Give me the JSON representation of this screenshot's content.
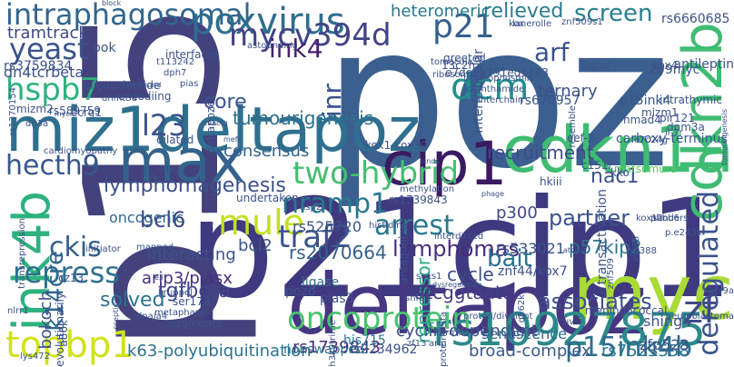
{
  "words": [
    {
      "text": "poz",
      "color": "#3b5f8f",
      "vertical": false
    },
    {
      "text": "p21cip1",
      "color": "#3f3a7f",
      "vertical": false
    },
    {
      "text": "p15",
      "color": "#43427d",
      "vertical": true
    },
    {
      "text": "deltapoz",
      "color": "#453781",
      "vertical": false
    },
    {
      "text": "miz1deltapoz",
      "color": "#2f6f8f",
      "vertical": false
    },
    {
      "text": "cdkn1a",
      "color": "#3fbc73",
      "vertical": false
    },
    {
      "text": "myc",
      "color": "#a8db34",
      "vertical": false
    },
    {
      "text": "cdkn2b",
      "color": "#3fbc73",
      "vertical": true
    },
    {
      "text": "cip1",
      "color": "#3a1a60",
      "vertical": false
    },
    {
      "text": "max",
      "color": "#33638d",
      "vertical": false
    },
    {
      "text": "ink4b",
      "color": "#2db27d",
      "vertical": true
    },
    {
      "text": "rs10927875",
      "color": "#2c8a8a",
      "vertical": false
    },
    {
      "text": "oncoprotein",
      "color": "#4ac16d",
      "vertical": false
    },
    {
      "text": "poxvirus",
      "color": "#2e6e8e",
      "vertical": false
    },
    {
      "text": "intraphagosomal",
      "color": "#32658e",
      "vertical": false
    },
    {
      "text": "mule",
      "color": "#c2df23",
      "vertical": false
    },
    {
      "text": "two-hybrid",
      "color": "#44bf70",
      "vertical": false
    },
    {
      "text": "deregulated",
      "color": "#3a538b",
      "vertical": true
    },
    {
      "text": "topbp1",
      "color": "#d2e21b",
      "vertical": false
    },
    {
      "text": "nramp1",
      "color": "#2a788e",
      "vertical": false
    },
    {
      "text": "traf2",
      "color": "#3b528b",
      "vertical": false
    },
    {
      "text": "arrest",
      "color": "#2a788e",
      "vertical": false
    },
    {
      "text": "dcm",
      "color": "#21908d",
      "vertical": false
    },
    {
      "text": "repress",
      "color": "#2d708e",
      "vertical": false
    },
    {
      "text": "p15ink4b",
      "color": "#2f6c8e",
      "vertical": false
    },
    {
      "text": "yeast",
      "color": "#3b528b",
      "vertical": false
    },
    {
      "text": "mycv394d",
      "color": "#414287",
      "vertical": false
    },
    {
      "text": "hspb7",
      "color": "#2db27d",
      "vertical": false
    },
    {
      "text": "l23",
      "color": "#3b528b",
      "vertical": false
    },
    {
      "text": "hecth9",
      "color": "#38588c",
      "vertical": false
    },
    {
      "text": "ckis",
      "color": "#34608d",
      "vertical": false
    },
    {
      "text": "bcl6",
      "color": "#3f4788",
      "vertical": false
    },
    {
      "text": "k14cre",
      "color": "#31668e",
      "vertical": true
    },
    {
      "text": "partner",
      "color": "#3b528b",
      "vertical": false
    },
    {
      "text": "ink4",
      "color": "#481f70",
      "vertical": false
    },
    {
      "text": "zf",
      "color": "#3e4a89",
      "vertical": false
    },
    {
      "text": "p21",
      "color": "#355f8d",
      "vertical": false
    },
    {
      "text": "screen",
      "color": "#277f8e",
      "vertical": false
    },
    {
      "text": "arf",
      "color": "#3a538b",
      "vertical": false
    },
    {
      "text": "associates",
      "color": "#3d4e8a",
      "vertical": false
    },
    {
      "text": "lymphomagenesis",
      "color": "#3b518b",
      "vertical": false
    },
    {
      "text": "tgfbeta",
      "color": "#404588",
      "vertical": false
    },
    {
      "text": "solved",
      "color": "#2c728e",
      "vertical": false
    },
    {
      "text": "k63-polyubiquitination",
      "color": "#2c728e",
      "vertical": false
    },
    {
      "text": "tramtrack",
      "color": "#3f4889",
      "vertical": false
    },
    {
      "text": "core",
      "color": "#3b528b",
      "vertical": false
    },
    {
      "text": "relieved",
      "color": "#287c8e",
      "vertical": false
    },
    {
      "text": "consensus",
      "color": "#33638d",
      "vertical": false
    },
    {
      "text": "rs2070664",
      "color": "#34618d",
      "vertical": false
    },
    {
      "text": "p57kip2",
      "color": "#2c738e",
      "vertical": false
    },
    {
      "text": "lymphomas",
      "color": "#472d7b",
      "vertical": false
    },
    {
      "text": "cycle",
      "color": "#3d4d8a",
      "vertical": false
    },
    {
      "text": "bait",
      "color": "#2d718e",
      "vertical": false
    },
    {
      "text": "rs1739843",
      "color": "#472c7a",
      "vertical": false
    },
    {
      "text": "tumourigenesis",
      "color": "#2d708e",
      "vertical": false
    },
    {
      "text": "recruitment",
      "color": "#3e4a89",
      "vertical": false
    },
    {
      "text": "repressor",
      "color": "#26ad81",
      "vertical": true
    },
    {
      "text": "interacting",
      "color": "#3b528b",
      "vertical": false
    },
    {
      "text": "ternary",
      "color": "#3b528b",
      "vertical": false
    },
    {
      "text": "heteromeric",
      "color": "#2a778e",
      "vertical": false
    },
    {
      "text": "bcl2",
      "color": "#3a548c",
      "vertical": false
    },
    {
      "text": "nac1",
      "color": "#3b528b",
      "vertical": false
    },
    {
      "text": "inr",
      "color": "#3b528b",
      "vertical": true
    },
    {
      "text": "p300",
      "color": "#3f4788",
      "vertical": false
    },
    {
      "text": "dn4tcrbeta",
      "color": "#3b528b",
      "vertical": false
    },
    {
      "text": "oncogenic",
      "color": "#31678e",
      "vertical": false
    },
    {
      "text": "rs3759834",
      "color": "#3b528b",
      "vertical": false
    },
    {
      "text": "atcggtaatc",
      "color": "#433e85",
      "vertical": false
    },
    {
      "text": "senescence",
      "color": "#2f6c8e",
      "vertical": false
    },
    {
      "text": "cyclin-dependent",
      "color": "#3b528b",
      "vertical": false
    },
    {
      "text": "broad-complex",
      "color": "#38598c",
      "vertical": false
    },
    {
      "text": "rs7523558",
      "color": "#2a788e",
      "vertical": false
    },
    {
      "text": "rs2234962",
      "color": "#3b528b",
      "vertical": false
    },
    {
      "text": "rs533021",
      "color": "#3b528b",
      "vertical": false
    },
    {
      "text": "arip3/piasx",
      "color": "#46307e",
      "vertical": false
    },
    {
      "text": "bokoch",
      "color": "#3b528b",
      "vertical": true
    },
    {
      "text": "ligase",
      "color": "#2c728e",
      "vertical": false
    },
    {
      "text": "pias3",
      "color": "#3b528b",
      "vertical": false
    },
    {
      "text": "znf44/kox7",
      "color": "#3b528b",
      "vertical": false
    },
    {
      "text": "rs525720",
      "color": "#3b528b",
      "vertical": false
    },
    {
      "text": "his715",
      "color": "#2a788e",
      "vertical": false
    },
    {
      "text": "pozo",
      "color": "#3b528b",
      "vertical": false
    },
    {
      "text": "nonswapped",
      "color": "#2c738e",
      "vertical": false
    },
    {
      "text": "zfp523",
      "color": "#3b528b",
      "vertical": false
    },
    {
      "text": "shing4",
      "color": "#3b528b",
      "vertical": false
    },
    {
      "text": "rs6660685",
      "color": "#3b528b",
      "vertical": false
    },
    {
      "text": "rs670957",
      "color": "#3b528b",
      "vertical": false
    },
    {
      "text": "transactivation",
      "color": "#3b528b",
      "vertical": true
    },
    {
      "text": "interfollicular",
      "color": "#3b528b",
      "vertical": true
    },
    {
      "text": "greeted",
      "color": "#3b528b",
      "vertical": false
    },
    {
      "text": "evolutionarily",
      "color": "#3b528b",
      "vertical": true
    },
    {
      "text": "matsumura",
      "color": "#5ec962",
      "vertical": false
    },
    {
      "text": "carboxy-terminus",
      "color": "#38588c",
      "vertical": false
    },
    {
      "text": "antileptin",
      "color": "#3b528b",
      "vertical": false
    },
    {
      "text": "deltapozes",
      "color": "#3b528b",
      "vertical": true
    },
    {
      "text": "e7delta791ed1183",
      "color": "#3b528b",
      "vertical": false
    },
    {
      "text": "13c2h2",
      "color": "#3b528b",
      "vertical": false
    },
    {
      "text": "p15ink4",
      "color": "#3b528b",
      "vertical": false
    },
    {
      "text": "intrathymic",
      "color": "#3b528b",
      "vertical": false
    },
    {
      "text": "hmad4",
      "color": "#3b528b",
      "vertical": false
    },
    {
      "text": "pir121",
      "color": "#3b528b",
      "vertical": false
    },
    {
      "text": "dnm3a",
      "color": "#3b528b",
      "vertical": false
    },
    {
      "text": "rs589759",
      "color": "#3b528b",
      "vertical": false
    },
    {
      "text": "rs1370154",
      "color": "#3b528b",
      "vertical": true
    },
    {
      "text": "pok",
      "color": "#3b528b",
      "vertical": false
    },
    {
      "text": "oligoucleotide",
      "color": "#3b528b",
      "vertical": false
    },
    {
      "text": "encodiing",
      "color": "#3b528b",
      "vertical": false
    },
    {
      "text": "mizm1",
      "color": "#3b528b",
      "vertical": false
    },
    {
      "text": "mizm2",
      "color": "#3b528b",
      "vertical": false
    },
    {
      "text": "ecrg1",
      "color": "#3b528b",
      "vertical": false
    },
    {
      "text": "dilated",
      "color": "#3b528b",
      "vertical": false
    },
    {
      "text": "eef-2",
      "color": "#3b528b",
      "vertical": false
    },
    {
      "text": "il-7r",
      "color": "#3b528b",
      "vertical": false
    },
    {
      "text": "e7c24g",
      "color": "#3b528b",
      "vertical": false
    },
    {
      "text": "c151r",
      "color": "#3b528b",
      "vertical": false
    },
    {
      "text": "hkiii",
      "color": "#3b528b",
      "vertical": false
    },
    {
      "text": "kko",
      "color": "#3b528b",
      "vertical": false
    },
    {
      "text": "kox4",
      "color": "#3b528b",
      "vertical": false
    },
    {
      "text": "8qter",
      "color": "#3b528b",
      "vertical": false
    },
    {
      "text": "209myc",
      "color": "#3b528b",
      "vertical": false
    },
    {
      "text": "a86k",
      "color": "#3b528b",
      "vertical": true
    },
    {
      "text": "cz13",
      "color": "#3b528b",
      "vertical": false
    },
    {
      "text": "lys472",
      "color": "#3b528b",
      "vertical": false
    },
    {
      "text": "t113242",
      "color": "#3b528b",
      "vertical": false
    },
    {
      "text": "interfaces",
      "color": "#3b528b",
      "vertical": false
    },
    {
      "text": "dph7",
      "color": "#3b528b",
      "vertical": false
    },
    {
      "text": "pias",
      "color": "#3b528b",
      "vertical": false
    },
    {
      "text": "interwound",
      "color": "#3b528b",
      "vertical": false
    },
    {
      "text": "lanerolle",
      "color": "#3b528b",
      "vertical": false
    },
    {
      "text": "tomacula",
      "color": "#3b528b",
      "vertical": false
    },
    {
      "text": "kox1-kox30",
      "color": "#3b528b",
      "vertical": false
    },
    {
      "text": "ribosomal",
      "color": "#3b528b",
      "vertical": false
    },
    {
      "text": "undertaken",
      "color": "#3b528b",
      "vertical": false
    },
    {
      "text": "methylation",
      "color": "#3b528b",
      "vertical": false
    },
    {
      "text": "hsp27",
      "color": "#3b528b",
      "vertical": false
    },
    {
      "text": "rs1739843",
      "color": "#3b528b",
      "vertical": false
    },
    {
      "text": "antagonize",
      "color": "#3b528b",
      "vertical": true
    },
    {
      "text": "ser178",
      "color": "#3b528b",
      "vertical": false
    },
    {
      "text": "metaphase",
      "color": "#3b528b",
      "vertical": false
    },
    {
      "text": "augments",
      "color": "#3b528b",
      "vertical": false
    },
    {
      "text": "mapped",
      "color": "#3b528b",
      "vertical": false
    },
    {
      "text": "initiator",
      "color": "#3b528b",
      "vertical": false
    },
    {
      "text": "histidine",
      "color": "#3b528b",
      "vertical": false
    },
    {
      "text": "phage",
      "color": "#3b528b",
      "vertical": false
    },
    {
      "text": "kox12",
      "color": "#3b528b",
      "vertical": false
    },
    {
      "text": "p.e243x",
      "color": "#3b528b",
      "vertical": false
    },
    {
      "text": "lys388",
      "color": "#3b528b",
      "vertical": false
    },
    {
      "text": "dnaja4",
      "color": "#3b528b",
      "vertical": false
    },
    {
      "text": "kruppel",
      "color": "#3b528b",
      "vertical": false
    },
    {
      "text": "nlrr1",
      "color": "#3b528b",
      "vertical": false
    },
    {
      "text": "arip",
      "color": "#3b528b",
      "vertical": false
    },
    {
      "text": "socs1",
      "color": "#3b528b",
      "vertical": false
    },
    {
      "text": "shfd1",
      "color": "#3b528b",
      "vertical": false
    },
    {
      "text": "proton/divalent",
      "color": "#3b528b",
      "vertical": false
    },
    {
      "text": "meningococcal",
      "color": "#3b528b",
      "vertical": false
    },
    {
      "text": "uv",
      "color": "#3b528b",
      "vertical": false
    },
    {
      "text": "h3k9trime",
      "color": "#3b528b",
      "vertical": true
    },
    {
      "text": "sanders",
      "color": "#3b528b",
      "vertical": false
    },
    {
      "text": "nucleophosmin",
      "color": "#3b528b",
      "vertical": false
    },
    {
      "text": "diphthamide",
      "color": "#3b528b",
      "vertical": false
    },
    {
      "text": "interchain",
      "color": "#3b528b",
      "vertical": false
    },
    {
      "text": "znf509s1",
      "color": "#3b528b",
      "vertical": false
    },
    {
      "text": "astounding",
      "color": "#3b528b",
      "vertical": false
    },
    {
      "text": "dnmt3a",
      "color": "#3b528b",
      "vertical": false
    },
    {
      "text": "cardiomyopathy",
      "color": "#3b528b",
      "vertical": false
    },
    {
      "text": "dn3a",
      "color": "#3b528b",
      "vertical": false
    },
    {
      "text": "mycn",
      "color": "#3b528b",
      "vertical": false
    },
    {
      "text": "caactg",
      "color": "#3b528b",
      "vertical": false
    },
    {
      "text": "mefs",
      "color": "#3b528b",
      "vertical": false
    },
    {
      "text": "binds",
      "color": "#3b528b",
      "vertical": false
    },
    {
      "text": "cdk",
      "color": "#3b528b",
      "vertical": false
    },
    {
      "text": "transrepression",
      "color": "#3b528b",
      "vertical": true
    },
    {
      "text": "scepticism",
      "color": "#3b528b",
      "vertical": true
    },
    {
      "text": "zf13",
      "color": "#3b528b",
      "vertical": false
    },
    {
      "text": "ccr9a",
      "color": "#3b528b",
      "vertical": false
    },
    {
      "text": "neuroblastoma",
      "color": "#3b528b",
      "vertical": false
    },
    {
      "text": "phbb6",
      "color": "#3b528b",
      "vertical": false
    },
    {
      "text": "atcgat",
      "color": "#3b528b",
      "vertical": false
    },
    {
      "text": "termed",
      "color": "#3b528b",
      "vertical": false
    },
    {
      "text": "interdicted",
      "color": "#3b528b",
      "vertical": false
    },
    {
      "text": "dysregulation",
      "color": "#3b528b",
      "vertical": false
    },
    {
      "text": "e3",
      "color": "#3b528b",
      "vertical": false
    },
    {
      "text": "kox",
      "color": "#3b528b",
      "vertical": false
    },
    {
      "text": "block",
      "color": "#3b528b",
      "vertical": false
    },
    {
      "text": "resemble",
      "color": "#3b528b",
      "vertical": true
    },
    {
      "text": "znf509",
      "color": "#3b528b",
      "vertical": true
    },
    {
      "text": "q562k",
      "color": "#3b528b",
      "vertical": true
    },
    {
      "text": "zfp36",
      "color": "#3b528b",
      "vertical": true
    },
    {
      "text": "tumourigenesis",
      "color": "#3b528b",
      "vertical": true
    },
    {
      "text": "proteindelta",
      "color": "#3b528b",
      "vertical": true
    }
  ]
}
